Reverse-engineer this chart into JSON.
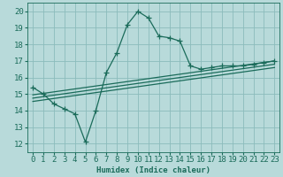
{
  "xlabel": "Humidex (Indice chaleur)",
  "xlim": [
    -0.5,
    23.5
  ],
  "ylim": [
    11.5,
    20.5
  ],
  "xticks": [
    0,
    1,
    2,
    3,
    4,
    5,
    6,
    7,
    8,
    9,
    10,
    11,
    12,
    13,
    14,
    15,
    16,
    17,
    18,
    19,
    20,
    21,
    22,
    23
  ],
  "yticks": [
    12,
    13,
    14,
    15,
    16,
    17,
    18,
    19,
    20
  ],
  "background_color": "#b8dada",
  "grid_color": "#8bbcbc",
  "line_color": "#1a6b5a",
  "main_line_x": [
    0,
    1,
    2,
    3,
    4,
    5,
    6,
    7,
    8,
    9,
    10,
    11,
    12,
    13,
    14,
    15,
    16,
    17,
    18,
    19,
    20,
    21,
    22,
    23
  ],
  "main_line_y": [
    15.4,
    15.0,
    14.4,
    14.1,
    13.8,
    12.1,
    14.0,
    16.3,
    17.5,
    19.2,
    20.0,
    19.6,
    18.5,
    18.4,
    18.2,
    16.7,
    16.5,
    16.6,
    16.7,
    16.7,
    16.7,
    16.8,
    16.9,
    17.0
  ],
  "trend_lines": [
    {
      "x": [
        0,
        23
      ],
      "y": [
        14.55,
        16.6
      ]
    },
    {
      "x": [
        0,
        23
      ],
      "y": [
        14.75,
        16.8
      ]
    },
    {
      "x": [
        0,
        23
      ],
      "y": [
        14.95,
        17.0
      ]
    }
  ],
  "marker": "+",
  "marker_size": 4,
  "linewidth": 0.9,
  "font_size": 6.5,
  "font_family": "monospace"
}
